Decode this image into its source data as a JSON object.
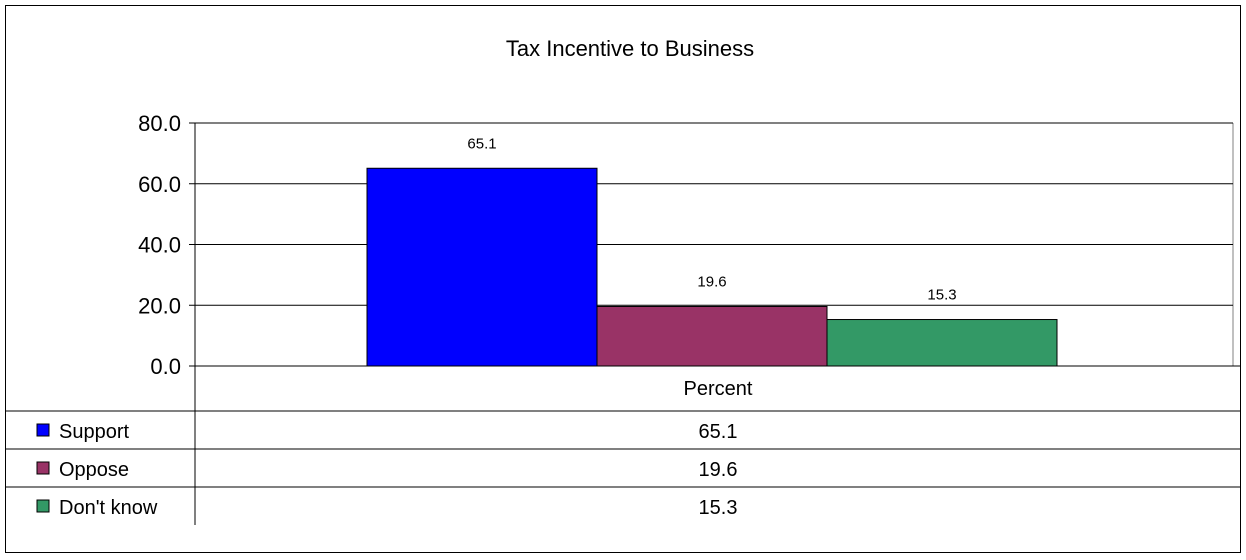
{
  "chart_data": {
    "type": "bar",
    "title": "Tax Incentive to Business",
    "categories": [
      "Percent"
    ],
    "series": [
      {
        "name": "Support",
        "values": [
          65.1
        ],
        "color": "#0000ff"
      },
      {
        "name": "Oppose",
        "values": [
          19.6
        ],
        "color": "#993366"
      },
      {
        "name": "Don't know",
        "values": [
          15.3
        ],
        "color": "#339966"
      }
    ],
    "ylim": [
      0,
      80
    ],
    "yticks": [
      "0.0",
      "20.0",
      "40.0",
      "60.0",
      "80.0"
    ],
    "grid": true,
    "legend": "data-table-left",
    "data_table": true
  }
}
